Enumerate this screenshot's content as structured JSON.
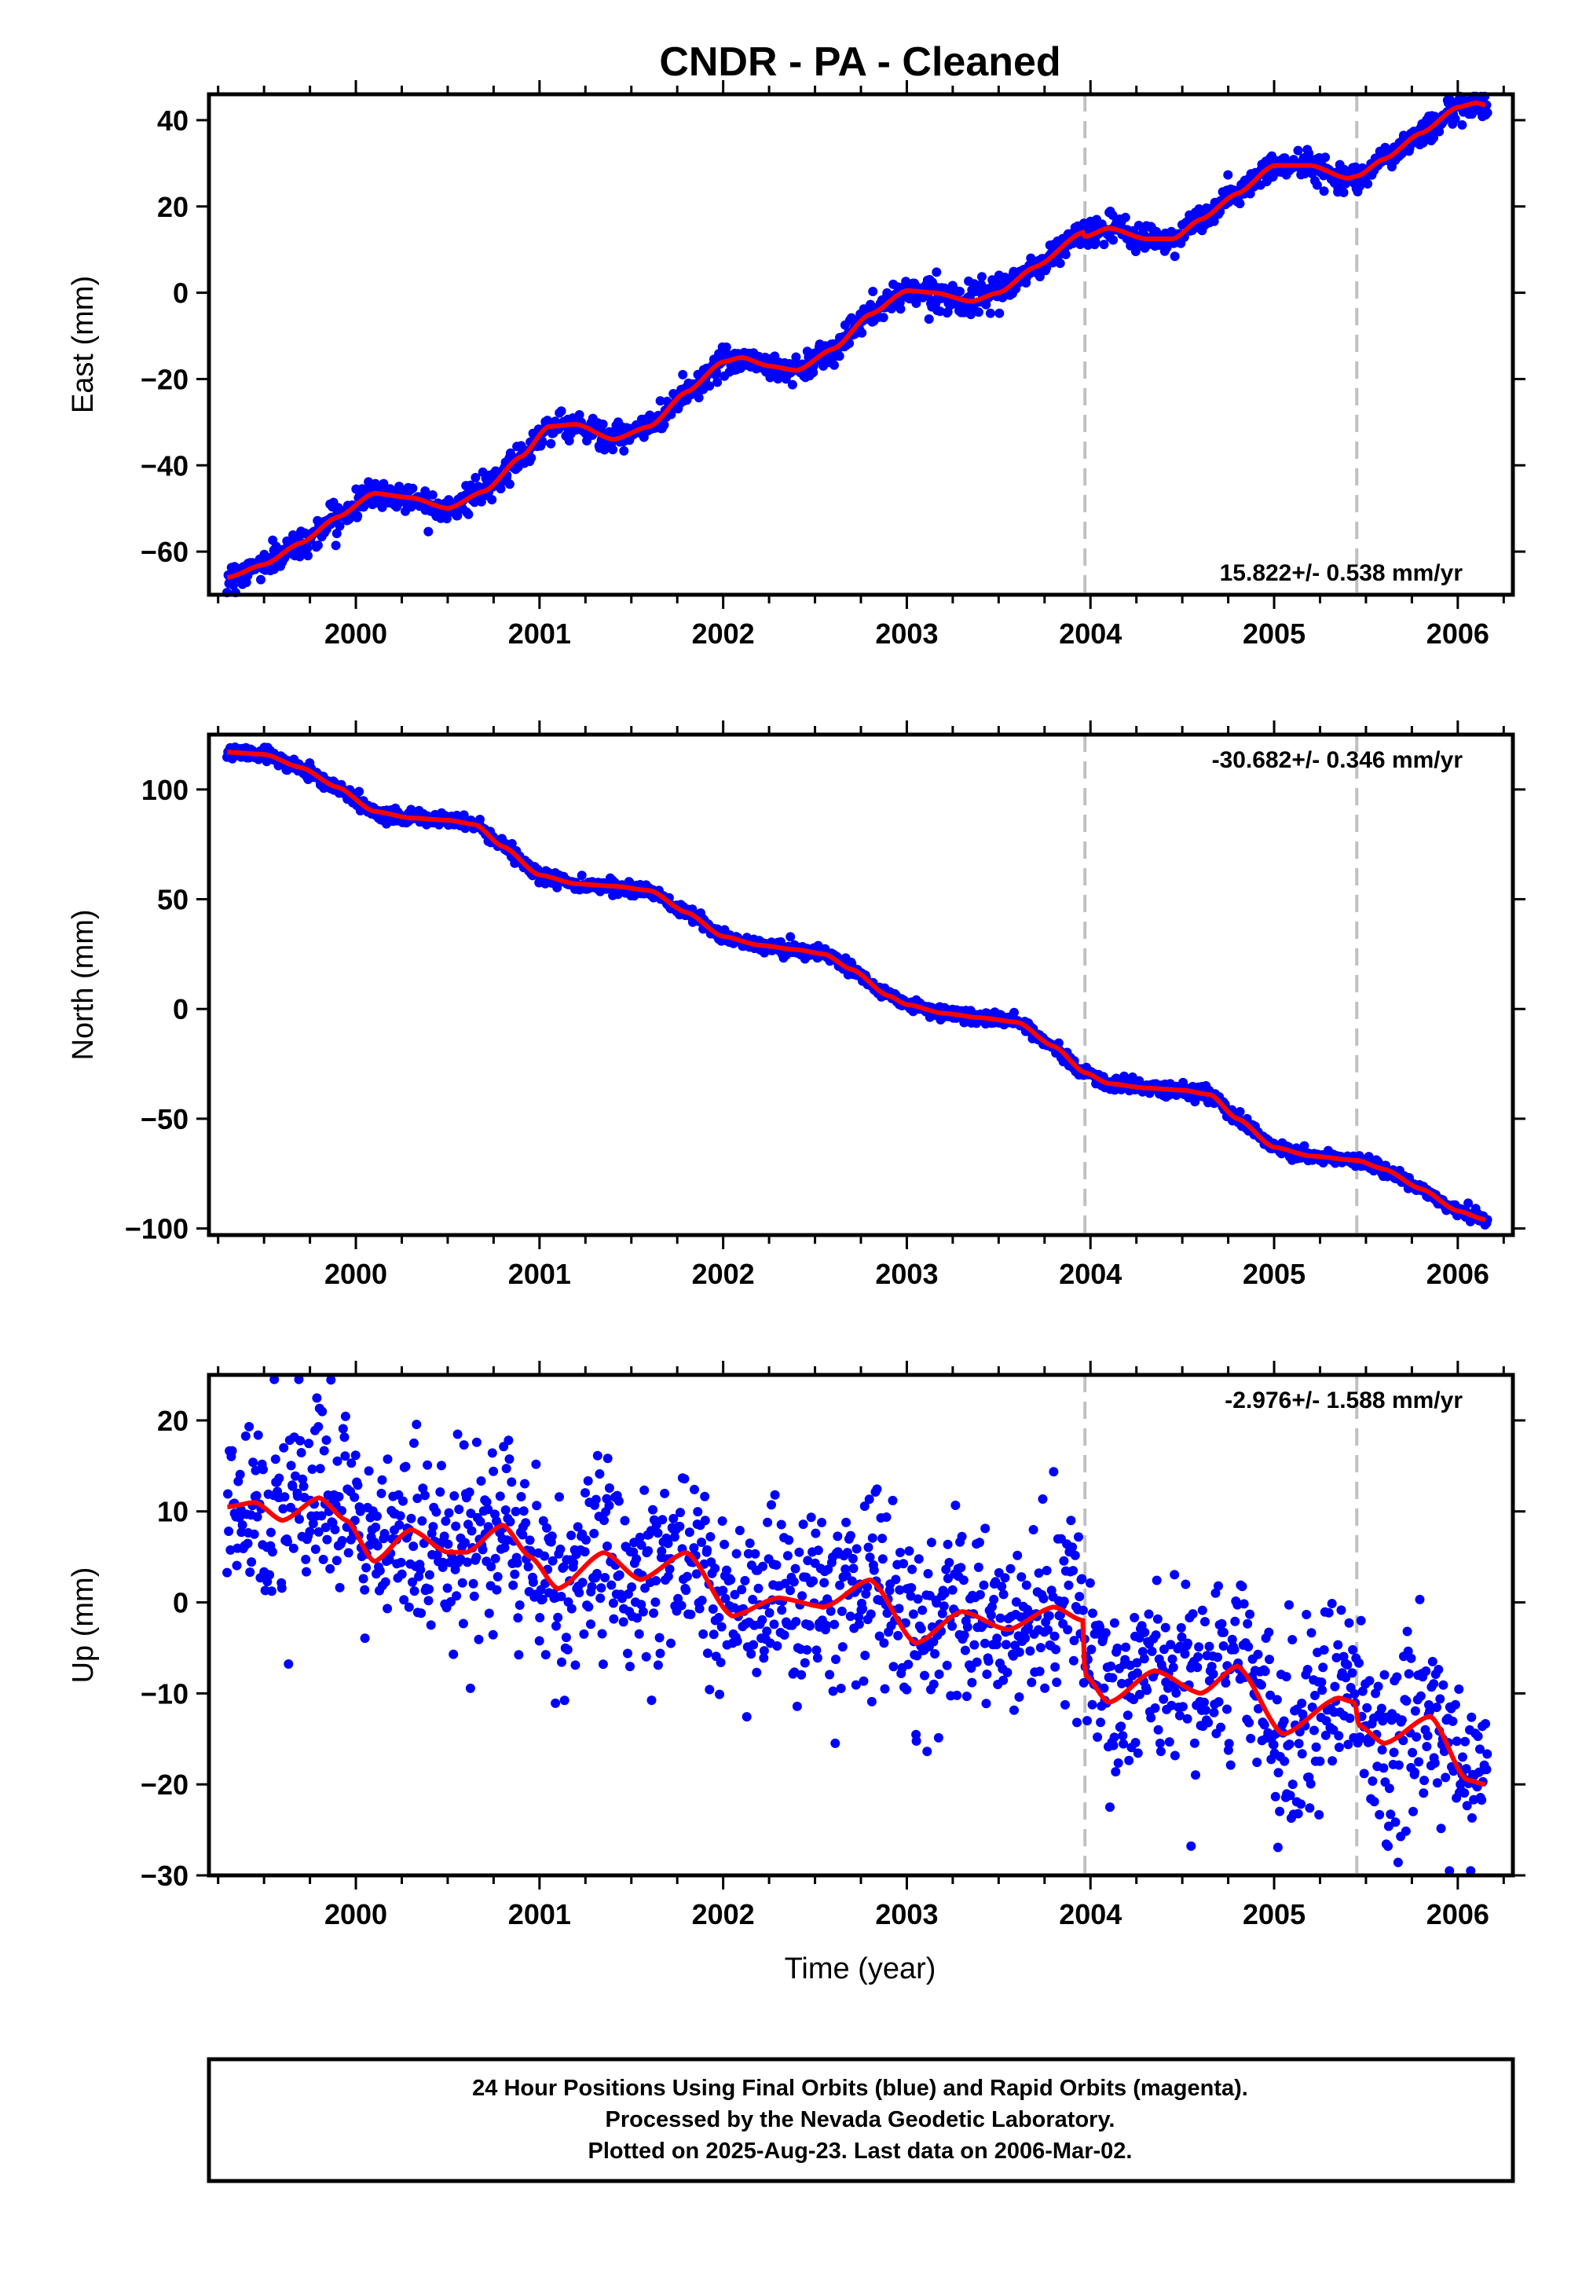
{
  "title": "CNDR  - PA - Cleaned",
  "xlabel": "Time (year)",
  "footer": {
    "line1": "24 Hour Positions Using Final Orbits (blue) and Rapid Orbits (magenta).",
    "line2": "Processed by the Nevada Geodetic Laboratory.",
    "line3": "Plotted on 2025-Aug-23. Last data on 2006-Mar-02."
  },
  "colors": {
    "points": "#0000ff",
    "model": "#ff0000",
    "event_lines": "#c0c0c0"
  },
  "chart_data": [
    {
      "type": "scatter",
      "component": "east",
      "ylabel": "East (mm)",
      "rate_label": "15.822+/- 0.538 mm/yr",
      "rate_position": "bottom-right",
      "xlim": [
        1999.2,
        2006.3
      ],
      "ylim": [
        -70,
        46
      ],
      "yticks": [
        -60,
        -40,
        -20,
        0,
        20,
        40
      ],
      "xticks": [
        2000,
        2001,
        2002,
        2003,
        2004,
        2005,
        2006
      ],
      "event_lines_x": [
        2003.97,
        2005.45
      ],
      "model_knots": {
        "x": [
          1999.3,
          1999.5,
          1999.7,
          1999.9,
          2000.1,
          2000.3,
          2000.5,
          2000.7,
          2000.9,
          2001.05,
          2001.2,
          2001.4,
          2001.6,
          2001.8,
          2002.0,
          2002.1,
          2002.25,
          2002.4,
          2002.6,
          2002.8,
          2003.0,
          2003.15,
          2003.35,
          2003.5,
          2003.7,
          2003.96,
          2003.97,
          2004.1,
          2004.3,
          2004.45,
          2004.6,
          2004.8,
          2005.0,
          2005.2,
          2005.4,
          2005.45,
          2005.6,
          2005.8,
          2006.0,
          2006.1,
          2006.15
        ],
        "y": [
          -66,
          -63,
          -58,
          -52,
          -46.5,
          -47.5,
          -50,
          -46,
          -38,
          -31,
          -30.5,
          -34,
          -31,
          -23,
          -16,
          -15,
          -17,
          -18,
          -13,
          -5,
          0.5,
          0,
          -2,
          0,
          6,
          14,
          13,
          15,
          12.5,
          12.5,
          17,
          23,
          29.5,
          29.5,
          26.5,
          27,
          31,
          37,
          43,
          44,
          43.5
        ]
      },
      "noise_mm": 1.6
    },
    {
      "type": "scatter",
      "component": "north",
      "ylabel": "North (mm)",
      "rate_label": "-30.682+/- 0.346 mm/yr",
      "rate_position": "top-right",
      "xlim": [
        1999.2,
        2006.3
      ],
      "ylim": [
        -103,
        125
      ],
      "yticks": [
        -100,
        -50,
        0,
        50,
        100
      ],
      "xticks": [
        2000,
        2001,
        2002,
        2003,
        2004,
        2005,
        2006
      ],
      "event_lines_x": [
        2003.97,
        2005.45
      ],
      "model_knots": {
        "x": [
          1999.3,
          1999.5,
          1999.7,
          1999.9,
          2000.1,
          2000.3,
          2000.5,
          2000.65,
          2000.8,
          2001.0,
          2001.2,
          2001.4,
          2001.6,
          2001.8,
          2002.0,
          2002.2,
          2002.4,
          2002.55,
          2002.7,
          2002.9,
          2003.0,
          2003.2,
          2003.4,
          2003.6,
          2003.8,
          2003.97,
          2004.1,
          2004.3,
          2004.5,
          2004.65,
          2004.8,
          2005.0,
          2005.2,
          2005.45,
          2005.6,
          2005.8,
          2006.0,
          2006.15
        ],
        "y": [
          117,
          116,
          110,
          101,
          90,
          87,
          86,
          84,
          74,
          61,
          57,
          56,
          54,
          44,
          33,
          29,
          27,
          25,
          18,
          6,
          2,
          -2,
          -4,
          -6,
          -17,
          -29,
          -34,
          -36,
          -37,
          -39,
          -50,
          -63,
          -67,
          -69,
          -73,
          -82,
          -92,
          -96
        ]
      },
      "noise_mm": 1.5
    },
    {
      "type": "scatter",
      "component": "up",
      "ylabel": "Up (mm)",
      "rate_label": "-2.976+/- 1.588 mm/yr",
      "rate_position": "top-right",
      "xlim": [
        1999.2,
        2006.3
      ],
      "ylim": [
        -30,
        25
      ],
      "yticks": [
        -30,
        -20,
        -10,
        0,
        10,
        20
      ],
      "xticks": [
        2000,
        2001,
        2002,
        2003,
        2004,
        2005,
        2006
      ],
      "event_lines_x": [
        2003.97,
        2005.45
      ],
      "model_knots": {
        "x": [
          1999.3,
          1999.45,
          1999.6,
          1999.8,
          1999.95,
          2000.1,
          2000.3,
          2000.5,
          2000.6,
          2000.8,
          2000.95,
          2001.1,
          2001.35,
          2001.55,
          2001.8,
          2002.05,
          2002.3,
          2002.55,
          2002.8,
          2003.05,
          2003.3,
          2003.55,
          2003.8,
          2003.96,
          2003.97,
          2004.1,
          2004.35,
          2004.6,
          2004.8,
          2005.05,
          2005.35,
          2005.44,
          2005.46,
          2005.6,
          2005.85,
          2006.05,
          2006.15
        ],
        "y": [
          10.5,
          11,
          9,
          11.5,
          9,
          4.5,
          8,
          5.5,
          5.5,
          8.5,
          5,
          1.5,
          5.5,
          2.5,
          5.5,
          -1.5,
          0.5,
          -0.5,
          2.5,
          -4.5,
          -1,
          -3,
          -0.5,
          -2,
          -8,
          -11,
          -7.5,
          -10,
          -7,
          -14.5,
          -10.5,
          -11,
          -13.5,
          -15.5,
          -12.5,
          -19.5,
          -20
        ]
      },
      "noise_mm": 5.0
    }
  ]
}
